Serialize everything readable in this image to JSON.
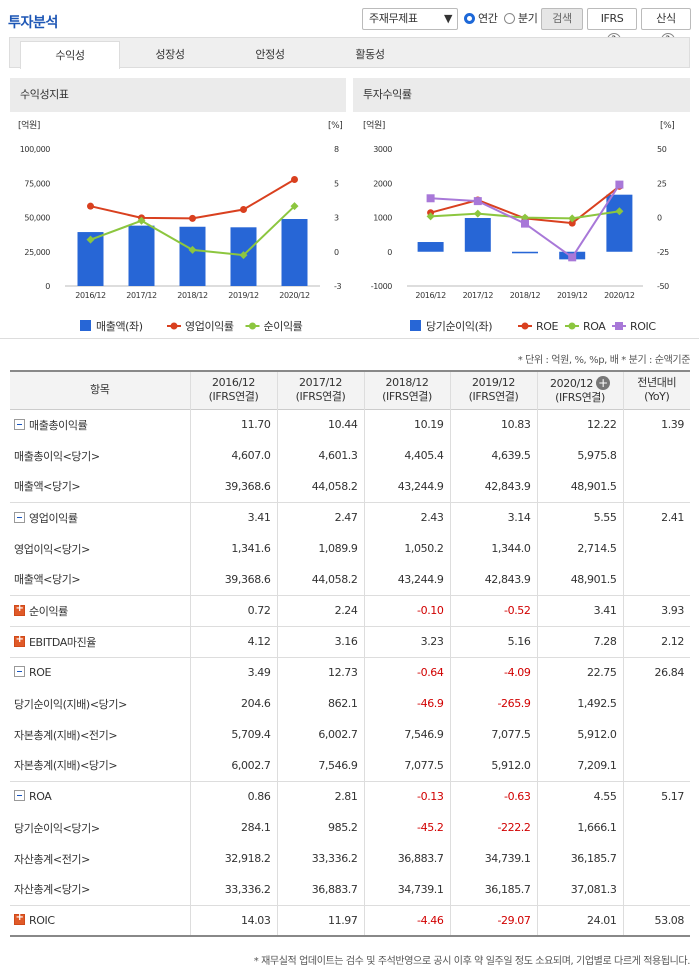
{
  "header": {
    "title": "투자분석",
    "select_value": "주재무제표",
    "annual_label": "연간",
    "quarter_label": "분기",
    "search_label": "검색",
    "ifrs_label": "IFRS",
    "calc_label": "산식",
    "help_glyph": "?"
  },
  "tabs": [
    "수익성",
    "성장성",
    "안정성",
    "활동성"
  ],
  "panels": {
    "left_title": "수익성지표",
    "right_title": "투자수익률"
  },
  "unit_note": "* 단위 : 억원, %, %p, 배   * 분기 : 순액기준",
  "footnote": "* 재무실적 업데이트는 검수 및 주석반영으로 공시 이후 약 일주일 정도 소요되며, 기업별로 다르게 적용됩니다.",
  "table": {
    "col_item": "항목",
    "col_headers": [
      [
        "2016/12",
        "(IFRS연결)"
      ],
      [
        "2017/12",
        "(IFRS연결)"
      ],
      [
        "2018/12",
        "(IFRS연결)"
      ],
      [
        "2019/12",
        "(IFRS연결)"
      ],
      [
        "2020/12",
        "(IFRS연결)"
      ],
      [
        "전년대비",
        "(YoY)"
      ]
    ],
    "rows": [
      {
        "label": "매출총이익률",
        "ex": "m",
        "sub": false,
        "vals": [
          "11.70",
          "10.44",
          "10.19",
          "10.83",
          "12.22",
          "1.39"
        ]
      },
      {
        "label": "매출총이익<당기>",
        "ex": "",
        "sub": true,
        "vals": [
          "4,607.0",
          "4,601.3",
          "4,405.4",
          "4,639.5",
          "5,975.8",
          ""
        ]
      },
      {
        "label": "매출액<당기>",
        "ex": "",
        "sub": true,
        "vals": [
          "39,368.6",
          "44,058.2",
          "43,244.9",
          "42,843.9",
          "48,901.5",
          ""
        ]
      },
      {
        "label": "영업이익률",
        "ex": "m",
        "sub": false,
        "vals": [
          "3.41",
          "2.47",
          "2.43",
          "3.14",
          "5.55",
          "2.41"
        ]
      },
      {
        "label": "영업이익<당기>",
        "ex": "",
        "sub": true,
        "vals": [
          "1,341.6",
          "1,089.9",
          "1,050.2",
          "1,344.0",
          "2,714.5",
          ""
        ]
      },
      {
        "label": "매출액<당기>",
        "ex": "",
        "sub": true,
        "vals": [
          "39,368.6",
          "44,058.2",
          "43,244.9",
          "42,843.9",
          "48,901.5",
          ""
        ]
      },
      {
        "label": "순이익률",
        "ex": "p",
        "sub": false,
        "vals": [
          "0.72",
          "2.24",
          "-0.10",
          "-0.52",
          "3.41",
          "3.93"
        ]
      },
      {
        "label": "EBITDA마진율",
        "ex": "p",
        "sub": false,
        "vals": [
          "4.12",
          "3.16",
          "3.23",
          "5.16",
          "7.28",
          "2.12"
        ]
      },
      {
        "label": "ROE",
        "ex": "m",
        "sub": false,
        "vals": [
          "3.49",
          "12.73",
          "-0.64",
          "-4.09",
          "22.75",
          "26.84"
        ]
      },
      {
        "label": "당기순이익(지배)<당기>",
        "ex": "",
        "sub": true,
        "vals": [
          "204.6",
          "862.1",
          "-46.9",
          "-265.9",
          "1,492.5",
          ""
        ]
      },
      {
        "label": "자본총계(지배)<전기>",
        "ex": "",
        "sub": true,
        "vals": [
          "5,709.4",
          "6,002.7",
          "7,546.9",
          "7,077.5",
          "5,912.0",
          ""
        ]
      },
      {
        "label": "자본총계(지배)<당기>",
        "ex": "",
        "sub": true,
        "vals": [
          "6,002.7",
          "7,546.9",
          "7,077.5",
          "5,912.0",
          "7,209.1",
          ""
        ]
      },
      {
        "label": "ROA",
        "ex": "m",
        "sub": false,
        "vals": [
          "0.86",
          "2.81",
          "-0.13",
          "-0.63",
          "4.55",
          "5.17"
        ]
      },
      {
        "label": "당기순이익<당기>",
        "ex": "",
        "sub": true,
        "vals": [
          "284.1",
          "985.2",
          "-45.2",
          "-222.2",
          "1,666.1",
          ""
        ]
      },
      {
        "label": "자산총계<전기>",
        "ex": "",
        "sub": true,
        "vals": [
          "32,918.2",
          "33,336.2",
          "36,883.7",
          "34,739.1",
          "36,185.7",
          ""
        ]
      },
      {
        "label": "자산총계<당기>",
        "ex": "",
        "sub": true,
        "vals": [
          "33,336.2",
          "36,883.7",
          "34,739.1",
          "36,185.7",
          "37,081.3",
          ""
        ]
      },
      {
        "label": "ROIC",
        "ex": "p",
        "sub": false,
        "vals": [
          "14.03",
          "11.97",
          "-4.46",
          "-29.07",
          "24.01",
          "53.08"
        ]
      }
    ]
  },
  "chart_data": [
    {
      "type": "bar",
      "title": "수익성지표",
      "categories": [
        "2016/12",
        "2017/12",
        "2018/12",
        "2019/12",
        "2020/12"
      ],
      "left_unit": "[억원]",
      "right_unit": "[%]",
      "ylim_left": [
        0,
        100000
      ],
      "yticks_left": [
        "100,000",
        "75,000",
        "50,000",
        "25,000",
        "0"
      ],
      "ylim_right": [
        -3,
        8
      ],
      "yticks_right": [
        "8",
        "5",
        "3",
        "0",
        "-3"
      ],
      "series": [
        {
          "name": "매출액(좌)",
          "axis": "left",
          "kind": "bar",
          "color": "#2766d6",
          "values": [
            39368.6,
            44058.2,
            43244.9,
            42843.9,
            48901.5
          ]
        },
        {
          "name": "영업이익률",
          "axis": "right",
          "kind": "line",
          "color": "#d9401f",
          "values": [
            3.41,
            2.47,
            2.43,
            3.14,
            5.55
          ]
        },
        {
          "name": "순이익률",
          "axis": "right",
          "kind": "line",
          "color": "#8cc63f",
          "values": [
            0.72,
            2.24,
            -0.1,
            -0.52,
            3.41
          ]
        }
      ]
    },
    {
      "type": "bar",
      "title": "투자수익률",
      "categories": [
        "2016/12",
        "2017/12",
        "2018/12",
        "2019/12",
        "2020/12"
      ],
      "left_unit": "[억원]",
      "right_unit": "[%]",
      "ylim_left": [
        -1000,
        3000
      ],
      "yticks_left": [
        "3000",
        "2000",
        "1000",
        "0",
        "-1000"
      ],
      "ylim_right": [
        -50,
        50
      ],
      "yticks_right": [
        "50",
        "25",
        "0",
        "-25",
        "-50"
      ],
      "series": [
        {
          "name": "당기순이익(좌)",
          "axis": "left",
          "kind": "bar",
          "color": "#2766d6",
          "values": [
            284.1,
            985.2,
            -45.2,
            -222.2,
            1666.1
          ]
        },
        {
          "name": "ROE",
          "axis": "right",
          "kind": "line",
          "color": "#d9401f",
          "values": [
            3.49,
            12.73,
            -0.64,
            -4.09,
            22.75
          ]
        },
        {
          "name": "ROA",
          "axis": "right",
          "kind": "line",
          "color": "#8cc63f",
          "values": [
            0.86,
            2.81,
            -0.13,
            -0.63,
            4.55
          ]
        },
        {
          "name": "ROIC",
          "axis": "right",
          "kind": "line",
          "color": "#a878d8",
          "values": [
            14.03,
            11.97,
            -4.46,
            -29.07,
            24.01
          ]
        }
      ]
    }
  ]
}
